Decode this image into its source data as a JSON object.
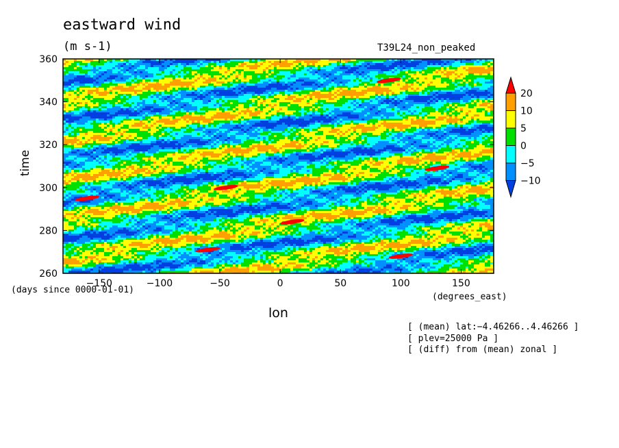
{
  "chart_data": {
    "type": "heatmap",
    "title": "eastward wind",
    "units": "(m s-1)",
    "run_label": "T39L24_non_peaked",
    "xlabel": "lon",
    "ylabel": "time",
    "x_units": "(degrees_east)",
    "y_units": "(days since 0000-01-01)",
    "xlim": [
      -180,
      177
    ],
    "ylim": [
      260,
      360
    ],
    "x_ticks": [
      -150,
      -100,
      -50,
      0,
      50,
      100,
      150
    ],
    "x_tick_labels": [
      "−150",
      "−100",
      "−50",
      "0",
      "50",
      "100",
      "150"
    ],
    "y_ticks": [
      260,
      280,
      300,
      320,
      340,
      360
    ],
    "y_tick_labels": [
      "260",
      "280",
      "300",
      "320",
      "340",
      "360"
    ],
    "colorbar": {
      "levels": [
        20,
        10,
        5,
        0,
        -5,
        -10
      ],
      "labels": [
        "20",
        "10",
        "5",
        "0",
        "−5",
        "−10"
      ],
      "colors": [
        "#ff0000",
        "#ffa000",
        "#ffff00",
        "#00e000",
        "#00ffff",
        "#0090ff",
        "#0040e0"
      ],
      "extend": "both"
    },
    "band_description": "eastward-propagating anomalies: alternating positive (yellow/orange) and negative (blue) bands tilted upward to the east",
    "red_maxima": [
      {
        "lon": -160,
        "time": 295
      },
      {
        "lon": -45,
        "time": 300
      },
      {
        "lon": -60,
        "time": 271
      },
      {
        "lon": 10,
        "time": 284
      },
      {
        "lon": 90,
        "time": 350
      },
      {
        "lon": 130,
        "time": 309
      },
      {
        "lon": 100,
        "time": 268
      }
    ],
    "notes": [
      "[ (mean) lat:−4.46266..4.46266 ]",
      "[ plev=25000 Pa ]",
      "[ (diff) from (mean) zonal ]"
    ]
  }
}
